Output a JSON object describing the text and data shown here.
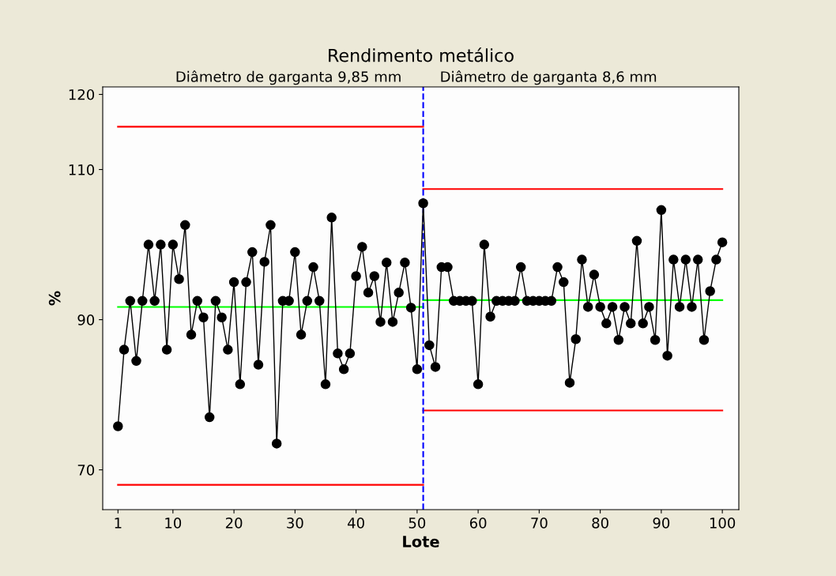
{
  "chart_data": {
    "type": "line",
    "title": "Rendimento metálico",
    "xlabel": "Lote",
    "ylabel": "%",
    "annotations": [
      "Diâmetro de garganta 9,85 mm",
      "Diâmetro de garganta 8,6 mm"
    ],
    "x": [
      1,
      2,
      3,
      4,
      5,
      6,
      7,
      8,
      9,
      10,
      11,
      12,
      13,
      14,
      15,
      16,
      17,
      18,
      19,
      20,
      21,
      22,
      23,
      24,
      25,
      26,
      27,
      28,
      29,
      30,
      31,
      32,
      33,
      34,
      35,
      36,
      37,
      38,
      39,
      40,
      41,
      42,
      43,
      44,
      45,
      46,
      47,
      48,
      49,
      50,
      51,
      52,
      53,
      54,
      55,
      56,
      57,
      58,
      59,
      60,
      61,
      62,
      63,
      64,
      65,
      66,
      67,
      68,
      69,
      70,
      71,
      72,
      73,
      74,
      75,
      76,
      77,
      78,
      79,
      80,
      81,
      82,
      83,
      84,
      85,
      86,
      87,
      88,
      89,
      90,
      91,
      92,
      93,
      94,
      95,
      96,
      97,
      98,
      99,
      100
    ],
    "series": [
      {
        "color": "#000000",
        "marker": "circle",
        "values": [
          75.8,
          86,
          92.5,
          84.5,
          92.5,
          100,
          92.5,
          100,
          86,
          100,
          95.4,
          102.6,
          88,
          92.5,
          90.3,
          77,
          92.5,
          90.3,
          86,
          95,
          81.4,
          95,
          99,
          84,
          97.7,
          102.6,
          73.5,
          92.5,
          92.5,
          99,
          88,
          92.5,
          97,
          92.5,
          81.4,
          103.6,
          85.5,
          83.4,
          85.5,
          95.8,
          99.7,
          93.6,
          95.8,
          89.7,
          97.6,
          89.7,
          93.6,
          97.6,
          91.6,
          83.4,
          105.5,
          86.6,
          83.7,
          97,
          97,
          92.5,
          92.5,
          92.5,
          92.5,
          81.4,
          100,
          90.4,
          92.5,
          92.5,
          92.5,
          92.5,
          97,
          92.5,
          92.5,
          92.5,
          92.5,
          92.5,
          97,
          95,
          81.6,
          87.4,
          98,
          91.7,
          96,
          91.7,
          89.5,
          91.7,
          87.3,
          91.7,
          89.5,
          100.5,
          89.5,
          91.7,
          87.3,
          104.6,
          85.2,
          98,
          91.7,
          98,
          91.7,
          98,
          87.3,
          93.8,
          98,
          100.3
        ]
      },
      {
        "color": "#ff0000",
        "marker": "none",
        "x": [
          1,
          51
        ],
        "values": [
          115.7,
          115.7
        ]
      },
      {
        "color": "#ff0000",
        "marker": "none",
        "x": [
          1,
          51
        ],
        "values": [
          68,
          68
        ]
      },
      {
        "color": "#00ff00",
        "marker": "none",
        "x": [
          1,
          51
        ],
        "values": [
          91.7,
          91.7
        ]
      },
      {
        "color": "#ff0000",
        "marker": "none",
        "x": [
          51,
          100
        ],
        "values": [
          107.4,
          107.4
        ]
      },
      {
        "color": "#ff0000",
        "marker": "none",
        "x": [
          51,
          100
        ],
        "values": [
          77.9,
          77.9
        ]
      },
      {
        "color": "#00ff00",
        "marker": "none",
        "x": [
          51,
          100
        ],
        "values": [
          92.6,
          92.6
        ]
      }
    ],
    "ref_lines": [
      {
        "axis": "x",
        "value": 51,
        "color": "#0000ff",
        "line_style": "dashed"
      }
    ],
    "xlim": [
      -1.5,
      102.7
    ],
    "ylim": [
      64.7,
      121
    ],
    "xticks": [
      1,
      10,
      20,
      30,
      40,
      50,
      60,
      70,
      80,
      90,
      100
    ],
    "yticks": [
      70,
      90,
      110,
      120
    ],
    "grid": false,
    "legend": false
  }
}
